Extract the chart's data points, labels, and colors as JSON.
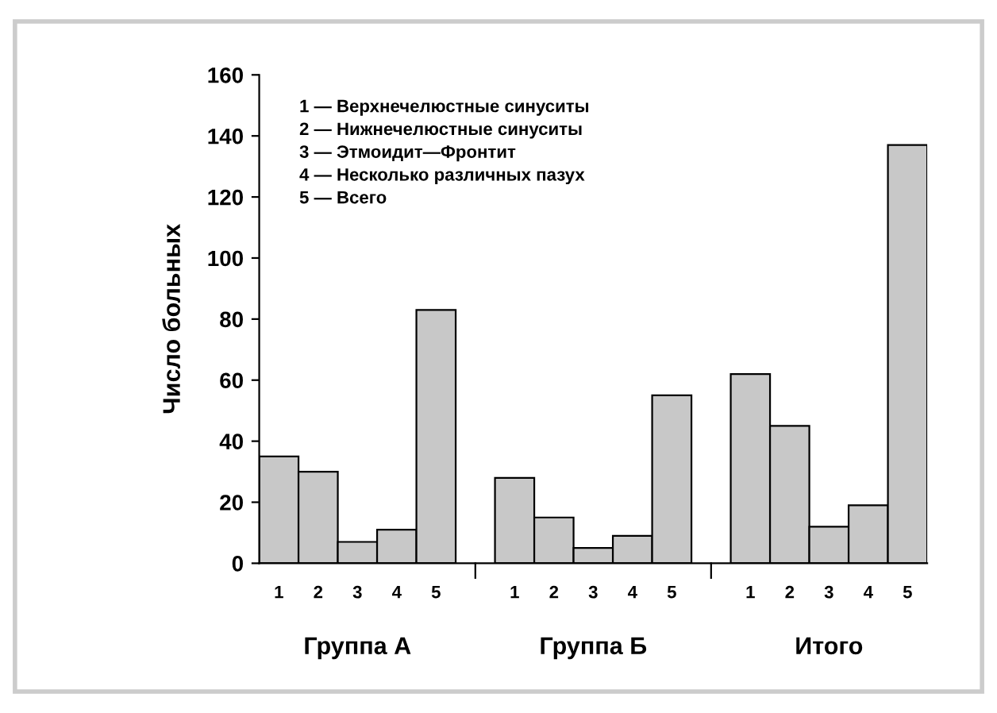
{
  "chart_data": {
    "type": "bar",
    "categories": [
      "1",
      "2",
      "3",
      "4",
      "5",
      null,
      "1",
      "2",
      "3",
      "4",
      "5",
      null,
      "1",
      "2",
      "3",
      "4",
      "5"
    ],
    "values": [
      35,
      30,
      7,
      11,
      83,
      null,
      28,
      15,
      5,
      9,
      55,
      null,
      62,
      45,
      12,
      19,
      137
    ],
    "color": "#c8c8c8",
    "ylabel": "Число больных",
    "ylim": [
      0,
      160
    ],
    "yticks": [
      0,
      20,
      40,
      60,
      80,
      100,
      120,
      140,
      160
    ],
    "grid": false,
    "annotations": [
      "1 — Верхнечелюстные синуситы\n2 — Нижнечелюстные синуситы\n3 — Этмоидит—Фронтит\n4 — Несколько различных пазух\n5 — Всего",
      "Группа А",
      "Группа Б",
      "Итого"
    ]
  }
}
